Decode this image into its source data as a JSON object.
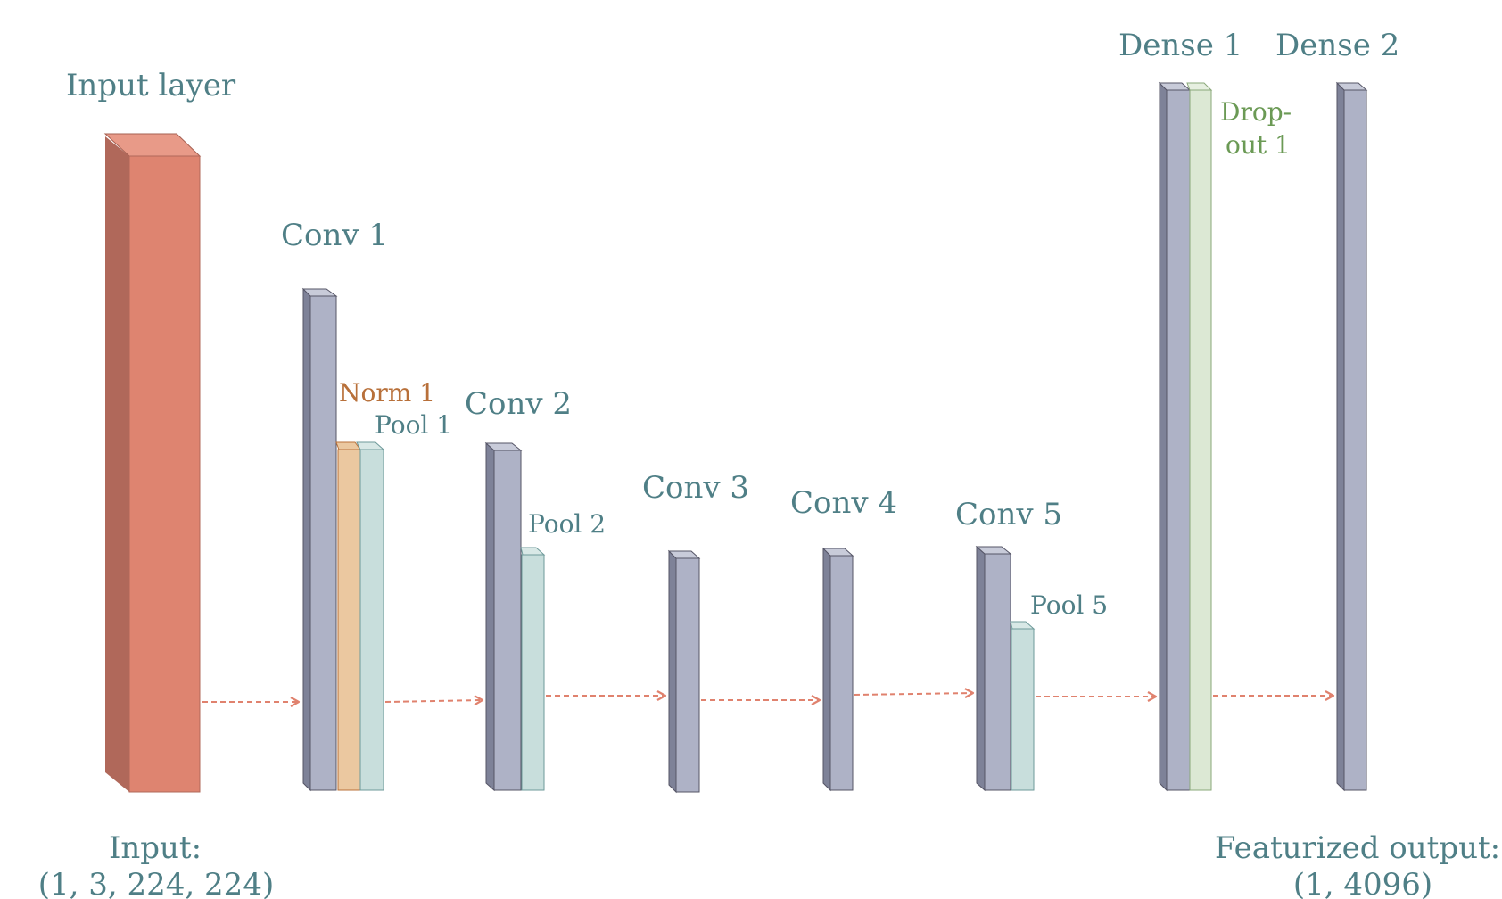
{
  "colors": {
    "label_teal": "#4F7F86",
    "norm_label": "#B8703A",
    "dropout_label": "#6B9A55",
    "input_front": "#DE8470",
    "input_side": "#B0685A",
    "input_top": "#E89A88",
    "conv_front": "#AEB2C6",
    "conv_side": "#7E8298",
    "conv_top": "#C8CBD9",
    "norm_front": "#EBC8A0",
    "pool_front": "#C8DEDC",
    "dropout_front": "#DCE8D4",
    "edge": "#555566",
    "arrow": "#E0826E"
  },
  "labels": {
    "input_layer": "Input layer",
    "conv1": "Conv 1",
    "norm1": "Norm 1",
    "pool1": "Pool 1",
    "conv2": "Conv 2",
    "pool2": "Pool 2",
    "conv3": "Conv 3",
    "conv4": "Conv 4",
    "conv5": "Conv 5",
    "pool5": "Pool 5",
    "dense1": "Dense 1",
    "dropout1_line1": "Drop-",
    "dropout1_line2": "out 1",
    "dense2": "Dense 2",
    "input_caption_line1": "Input:",
    "input_caption_line2": "(1, 3, 224, 224)",
    "output_caption_line1": "Featurized output:",
    "output_caption_line2": "(1, 4096)"
  }
}
